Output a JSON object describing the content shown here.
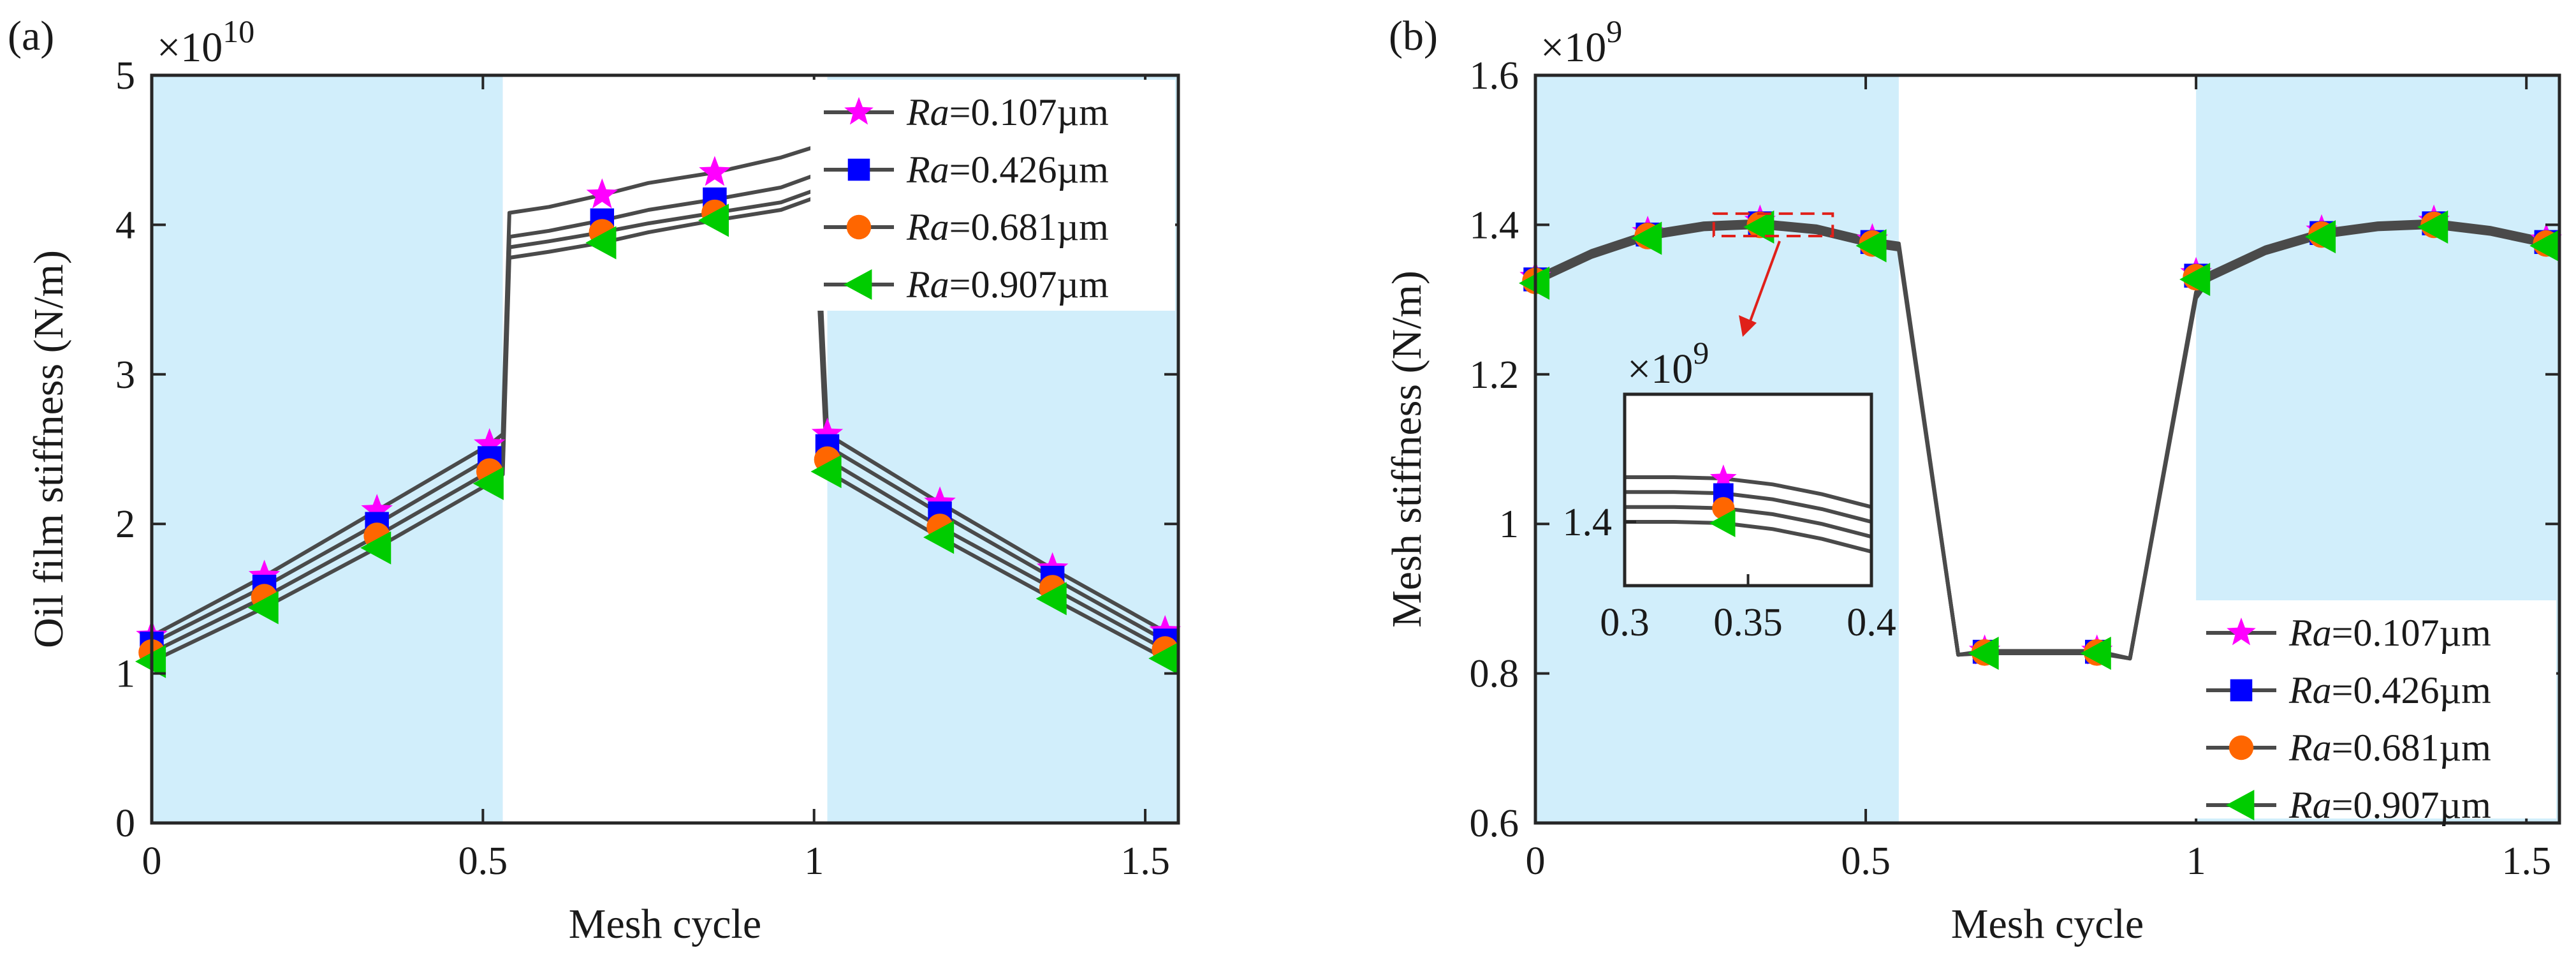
{
  "chart_data": [
    {
      "type": "line",
      "panel_label": "(a)",
      "multiplier": {
        "base": "×10",
        "exp": "10"
      },
      "xlabel": "Mesh cycle",
      "ylabel": "Oil film stiffness (N/m)",
      "xlim": [
        0,
        1.55
      ],
      "ylim": [
        0,
        5
      ],
      "xticks": [
        0,
        0.5,
        1,
        1.5
      ],
      "xtick_labels": [
        "0",
        "0.5",
        "1",
        "1.5"
      ],
      "yticks": [
        0,
        1,
        2,
        3,
        4,
        5
      ],
      "ytick_labels": [
        "0",
        "1",
        "2",
        "3",
        "4",
        "5"
      ],
      "shaded_ranges": [
        [
          0,
          0.53
        ],
        [
          1.02,
          1.55
        ]
      ],
      "shade_color": "#d1eefb",
      "legend_position": "top-right",
      "series": [
        {
          "name": "Ra=0.107µm",
          "name_italic": "Ra",
          "name_rest": "=0.107µm",
          "marker": "star",
          "color": "#ff00ff",
          "x": [
            0,
            0.17,
            0.34,
            0.51,
            0.53,
            0.54,
            0.6,
            0.68,
            0.75,
            0.85,
            0.95,
            1.0,
            1.02,
            1.19,
            1.36,
            1.53,
            1.55
          ],
          "y": [
            1.25,
            1.65,
            2.09,
            2.53,
            2.6,
            4.08,
            4.12,
            4.2,
            4.28,
            4.35,
            4.45,
            4.52,
            2.6,
            2.14,
            1.7,
            1.28,
            1.24
          ],
          "marker_x": [
            0,
            0.17,
            0.34,
            0.51,
            0.68,
            0.85,
            1.02,
            1.19,
            1.36,
            1.53
          ],
          "marker_y": [
            1.25,
            1.65,
            2.09,
            2.53,
            4.2,
            4.35,
            2.6,
            2.14,
            1.7,
            1.28
          ]
        },
        {
          "name": "Ra=0.426µm",
          "name_italic": "Ra",
          "name_rest": "=0.426µm",
          "marker": "square",
          "color": "#0000ff",
          "x": [
            0,
            0.17,
            0.34,
            0.51,
            0.53,
            0.54,
            0.6,
            0.68,
            0.75,
            0.85,
            0.95,
            1.0,
            1.02,
            1.19,
            1.36,
            1.53,
            1.55
          ],
          "y": [
            1.2,
            1.58,
            2.0,
            2.44,
            2.5,
            3.92,
            3.96,
            4.03,
            4.1,
            4.17,
            4.25,
            4.33,
            2.52,
            2.07,
            1.64,
            1.22,
            1.18
          ],
          "marker_x": [
            0,
            0.17,
            0.34,
            0.51,
            0.68,
            0.85,
            1.02,
            1.19,
            1.36,
            1.53
          ],
          "marker_y": [
            1.2,
            1.58,
            2.0,
            2.44,
            4.03,
            4.17,
            2.52,
            2.07,
            1.64,
            1.22
          ]
        },
        {
          "name": "Ra=0.681µm",
          "name_italic": "Ra",
          "name_rest": "=0.681µm",
          "marker": "circle",
          "color": "#ff6600",
          "x": [
            0,
            0.17,
            0.34,
            0.51,
            0.53,
            0.54,
            0.6,
            0.68,
            0.75,
            0.85,
            0.95,
            1.0,
            1.02,
            1.19,
            1.36,
            1.53,
            1.55
          ],
          "y": [
            1.14,
            1.51,
            1.92,
            2.35,
            2.41,
            3.85,
            3.89,
            3.95,
            4.01,
            4.08,
            4.15,
            4.23,
            2.43,
            1.98,
            1.57,
            1.16,
            1.12
          ],
          "marker_x": [
            0,
            0.17,
            0.34,
            0.51,
            0.68,
            0.85,
            1.02,
            1.19,
            1.36,
            1.53
          ],
          "marker_y": [
            1.14,
            1.51,
            1.92,
            2.35,
            3.95,
            4.08,
            2.43,
            1.98,
            1.57,
            1.16
          ]
        },
        {
          "name": "Ra=0.907µm",
          "name_italic": "Ra",
          "name_rest": "=0.907µm",
          "marker": "triangle-left",
          "color": "#00cc00",
          "x": [
            0,
            0.17,
            0.34,
            0.51,
            0.53,
            0.54,
            0.6,
            0.68,
            0.75,
            0.85,
            0.95,
            1.0,
            1.02,
            1.19,
            1.36,
            1.53,
            1.55
          ],
          "y": [
            1.08,
            1.44,
            1.84,
            2.27,
            2.33,
            3.78,
            3.82,
            3.88,
            3.95,
            4.03,
            4.1,
            4.18,
            2.35,
            1.91,
            1.5,
            1.1,
            1.06
          ],
          "marker_x": [
            0,
            0.17,
            0.34,
            0.51,
            0.68,
            0.85,
            1.02,
            1.19,
            1.36,
            1.53
          ],
          "marker_y": [
            1.08,
            1.44,
            1.84,
            2.27,
            3.88,
            4.03,
            2.35,
            1.91,
            1.5,
            1.1
          ]
        }
      ]
    },
    {
      "type": "line",
      "panel_label": "(b)",
      "multiplier": {
        "base": "×10",
        "exp": "9"
      },
      "xlabel": "Mesh cycle",
      "ylabel": "Mesh stiffness (N/m)",
      "xlim": [
        0,
        1.55
      ],
      "ylim": [
        0.6,
        1.6
      ],
      "xticks": [
        0,
        0.5,
        1,
        1.5
      ],
      "xtick_labels": [
        "0",
        "0.5",
        "1",
        "1.5"
      ],
      "yticks": [
        0.6,
        0.8,
        1,
        1.2,
        1.4,
        1.6
      ],
      "ytick_labels": [
        "0.6",
        "0.8",
        "1",
        "1.2",
        "1.4",
        "1.6"
      ],
      "shaded_ranges": [
        [
          0,
          0.55
        ],
        [
          1.0,
          1.55
        ]
      ],
      "shade_color": "#d1eefb",
      "legend_position": "bottom-right",
      "series": [
        {
          "name": "Ra=0.107µm",
          "name_italic": "Ra",
          "name_rest": "=0.107µm",
          "marker": "star",
          "color": "#ff00ff",
          "x": [
            0,
            0.085,
            0.17,
            0.255,
            0.34,
            0.425,
            0.51,
            0.55,
            0.64,
            0.68,
            0.85,
            0.9,
            1.0,
            1.02,
            1.105,
            1.19,
            1.275,
            1.36,
            1.445,
            1.53,
            1.55
          ],
          "y": [
            1.33,
            1.365,
            1.39,
            1.402,
            1.405,
            1.398,
            1.38,
            1.375,
            0.825,
            0.83,
            0.83,
            0.82,
            1.31,
            1.335,
            1.37,
            1.392,
            1.402,
            1.405,
            1.396,
            1.38,
            1.375
          ],
          "marker_x": [
            0,
            0.17,
            0.34,
            0.51,
            0.68,
            0.85,
            1.0,
            1.19,
            1.36,
            1.53
          ],
          "marker_y": [
            1.33,
            1.39,
            1.405,
            1.38,
            0.83,
            0.83,
            1.335,
            1.392,
            1.405,
            1.38
          ]
        },
        {
          "name": "Ra=0.426µm",
          "name_italic": "Ra",
          "name_rest": "=0.426µm",
          "marker": "square",
          "color": "#0000ff",
          "x": [
            0,
            0.085,
            0.17,
            0.255,
            0.34,
            0.425,
            0.51,
            0.55,
            0.64,
            0.68,
            0.85,
            0.9,
            1.0,
            1.02,
            1.105,
            1.19,
            1.275,
            1.36,
            1.445,
            1.53,
            1.55
          ],
          "y": [
            1.327,
            1.362,
            1.387,
            1.399,
            1.402,
            1.395,
            1.377,
            1.372,
            0.825,
            0.829,
            0.829,
            0.82,
            1.307,
            1.332,
            1.367,
            1.389,
            1.399,
            1.402,
            1.393,
            1.377,
            1.372
          ],
          "marker_x": [
            0,
            0.17,
            0.34,
            0.51,
            0.68,
            0.85,
            1.0,
            1.19,
            1.36,
            1.53
          ],
          "marker_y": [
            1.327,
            1.387,
            1.402,
            1.377,
            0.829,
            0.829,
            1.332,
            1.389,
            1.402,
            1.377
          ]
        },
        {
          "name": "Ra=0.681µm",
          "name_italic": "Ra",
          "name_rest": "=0.681µm",
          "marker": "circle",
          "color": "#ff6600",
          "x": [
            0,
            0.085,
            0.17,
            0.255,
            0.34,
            0.425,
            0.51,
            0.55,
            0.64,
            0.68,
            0.85,
            0.9,
            1.0,
            1.02,
            1.105,
            1.19,
            1.275,
            1.36,
            1.445,
            1.53,
            1.55
          ],
          "y": [
            1.325,
            1.36,
            1.385,
            1.397,
            1.4,
            1.393,
            1.375,
            1.37,
            0.825,
            0.828,
            0.828,
            0.82,
            1.305,
            1.33,
            1.365,
            1.387,
            1.397,
            1.4,
            1.391,
            1.375,
            1.37
          ],
          "marker_x": [
            0,
            0.17,
            0.34,
            0.51,
            0.68,
            0.85,
            1.0,
            1.19,
            1.36,
            1.53
          ],
          "marker_y": [
            1.325,
            1.385,
            1.4,
            1.375,
            0.828,
            0.828,
            1.33,
            1.387,
            1.4,
            1.375
          ]
        },
        {
          "name": "Ra=0.907µm",
          "name_italic": "Ra",
          "name_rest": "=0.907µm",
          "marker": "triangle-left",
          "color": "#00cc00",
          "x": [
            0,
            0.085,
            0.17,
            0.255,
            0.34,
            0.425,
            0.51,
            0.55,
            0.64,
            0.68,
            0.85,
            0.9,
            1.0,
            1.02,
            1.105,
            1.19,
            1.275,
            1.36,
            1.445,
            1.53,
            1.55
          ],
          "y": [
            1.322,
            1.357,
            1.382,
            1.394,
            1.397,
            1.39,
            1.372,
            1.367,
            0.825,
            0.827,
            0.827,
            0.82,
            1.302,
            1.327,
            1.362,
            1.384,
            1.394,
            1.397,
            1.388,
            1.372,
            1.367
          ],
          "marker_x": [
            0,
            0.17,
            0.34,
            0.51,
            0.68,
            0.85,
            1.0,
            1.19,
            1.36,
            1.53
          ],
          "marker_y": [
            1.322,
            1.382,
            1.397,
            1.372,
            0.827,
            0.827,
            1.327,
            1.384,
            1.397,
            1.372
          ]
        }
      ],
      "zoom_box": {
        "xlim": [
          0.27,
          0.45
        ],
        "ylim": [
          1.385,
          1.415
        ],
        "color": "#e0201a"
      },
      "inset": {
        "multiplier": {
          "base": "×10",
          "exp": "9"
        },
        "xlim": [
          0.3,
          0.4
        ],
        "ylim": [
          1.385,
          1.43
        ],
        "xticks": [
          0.3,
          0.35,
          0.4
        ],
        "xtick_labels": [
          "0.3",
          "0.35",
          "0.4"
        ],
        "yticks": [
          1.4
        ],
        "ytick_labels": [
          "1.4"
        ],
        "series": [
          {
            "x": [
              0.3,
              0.32,
              0.34,
              0.36,
              0.38,
              0.4
            ],
            "y": [
              1.4105,
              1.4105,
              1.4102,
              1.4088,
              1.4065,
              1.4035
            ],
            "marker_x": [
              0.34
            ],
            "marker_y": [
              1.4102
            ]
          },
          {
            "x": [
              0.3,
              0.32,
              0.34,
              0.36,
              0.38,
              0.4
            ],
            "y": [
              1.407,
              1.407,
              1.4067,
              1.4053,
              1.403,
              1.4
            ],
            "marker_x": [
              0.34
            ],
            "marker_y": [
              1.4067
            ]
          },
          {
            "x": [
              0.3,
              0.32,
              0.34,
              0.36,
              0.38,
              0.4
            ],
            "y": [
              1.4035,
              1.4035,
              1.4032,
              1.4018,
              1.3995,
              1.3965
            ],
            "marker_x": [
              0.34
            ],
            "marker_y": [
              1.4032
            ]
          },
          {
            "x": [
              0.3,
              0.32,
              0.34,
              0.36,
              0.38,
              0.4
            ],
            "y": [
              1.4,
              1.4,
              1.3997,
              1.3983,
              1.396,
              1.393
            ],
            "marker_x": [
              0.34
            ],
            "marker_y": [
              1.3997
            ]
          }
        ]
      }
    }
  ]
}
